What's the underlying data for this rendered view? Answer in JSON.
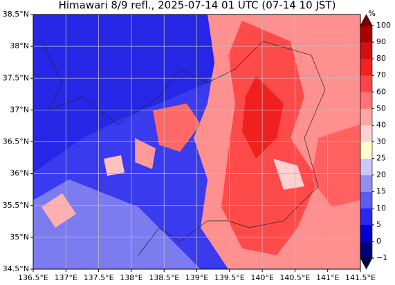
{
  "title": "Himawari 8/9 refl., 2025-07-14 01 UTC (07-14 10 JST)",
  "x_ticks": [
    "136.5°E",
    "137°E",
    "137.5°E",
    "138°E",
    "138.5°E",
    "139°E",
    "139.5°E",
    "140°E",
    "140.5°E",
    "141°E",
    "141.5°E"
  ],
  "y_ticks": [
    "34.5°N",
    "35°N",
    "35.5°N",
    "36°N",
    "36.5°N",
    "37°N",
    "37.5°N",
    "38°N",
    "38.5°N"
  ],
  "colorbar": {
    "unit": "%",
    "ticks": [
      "−1",
      "0",
      "5",
      "10",
      "15",
      "20",
      "25",
      "30",
      "40",
      "50",
      "60",
      "70",
      "80",
      "90",
      "100"
    ],
    "colors": [
      "#00007a",
      "#0000d0",
      "#2828f0",
      "#5c5cf2",
      "#9090f2",
      "#c8c8fa",
      "#ffffc8",
      "#ffd2d2",
      "#ffa6a6",
      "#ff7474",
      "#ff4646",
      "#f52020",
      "#d21010",
      "#a80000"
    ],
    "over": "#7a0000",
    "under": "#00004a"
  }
}
